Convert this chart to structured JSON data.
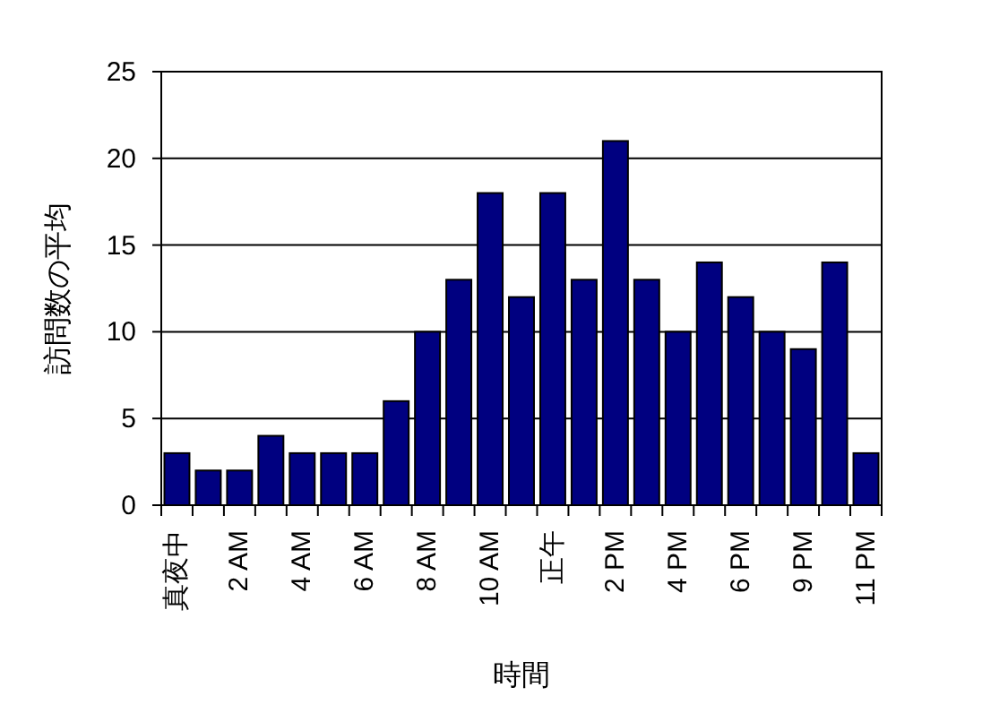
{
  "chart_data": {
    "type": "bar",
    "xlabel": "時間",
    "ylabel": "訪問数の平均",
    "categories": [
      "真夜中",
      null,
      "2 AM",
      null,
      "4 AM",
      null,
      "6 AM",
      null,
      "8 AM",
      null,
      "10 AM",
      null,
      "正午",
      null,
      "2 PM",
      null,
      "4 PM",
      null,
      "6 PM",
      null,
      "9 PM",
      null,
      "11 PM"
    ],
    "values": [
      3,
      2,
      2,
      4,
      3,
      3,
      3,
      6,
      10,
      13,
      18,
      12,
      18,
      13,
      21,
      13,
      10,
      14,
      12,
      10,
      9,
      14,
      3
    ],
    "color": "#000080",
    "ylim": [
      0,
      25
    ],
    "yticks": [
      0,
      5,
      10,
      15,
      20,
      25
    ],
    "grid": "y"
  }
}
